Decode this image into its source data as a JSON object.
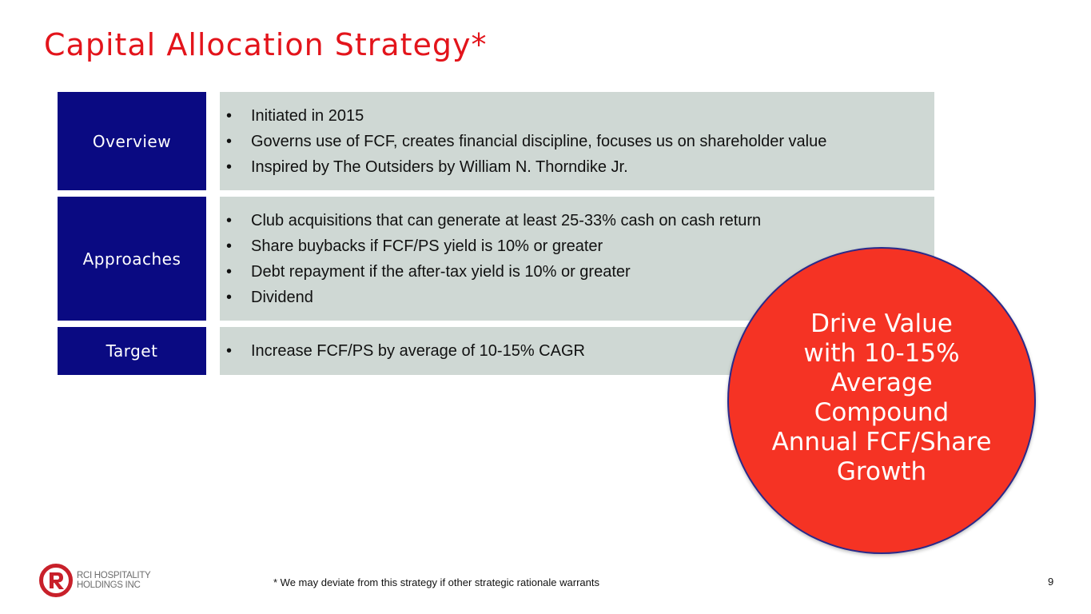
{
  "slide": {
    "title": "Capital Allocation Strategy*",
    "page_number": "9",
    "footnote": "* We may deviate from this strategy if other strategic rationale warrants"
  },
  "sections": [
    {
      "label": "Overview",
      "bullets": [
        "Initiated in 2015",
        "Governs use of FCF, creates financial discipline, focuses us on shareholder value",
        "Inspired by The Outsiders by William N. Thorndike Jr."
      ]
    },
    {
      "label": "Approaches",
      "bullets": [
        "Club acquisitions that can generate at least 25-33% cash on cash return",
        "Share buybacks if FCF/PS yield is 10% or greater",
        "Debt repayment if the after-tax yield is 10% or greater",
        "Dividend"
      ]
    },
    {
      "label": "Target",
      "bullets": [
        "Increase FCF/PS by average of 10-15% CAGR"
      ]
    }
  ],
  "callout": {
    "lines": [
      "Drive Value",
      "with 10-15%",
      "Average",
      "Compound",
      "Annual FCF/Share",
      "Growth"
    ]
  },
  "logo": {
    "icon": "rci-r-logo-icon",
    "line1": "RCI HOSPITALITY",
    "line2": "HOLDINGS INC"
  },
  "colors": {
    "title": "#e3141b",
    "label_bg": "#0a0a82",
    "content_bg": "#cfd8d4",
    "callout_bg": "#f53324",
    "callout_border": "#2a2a8a"
  }
}
